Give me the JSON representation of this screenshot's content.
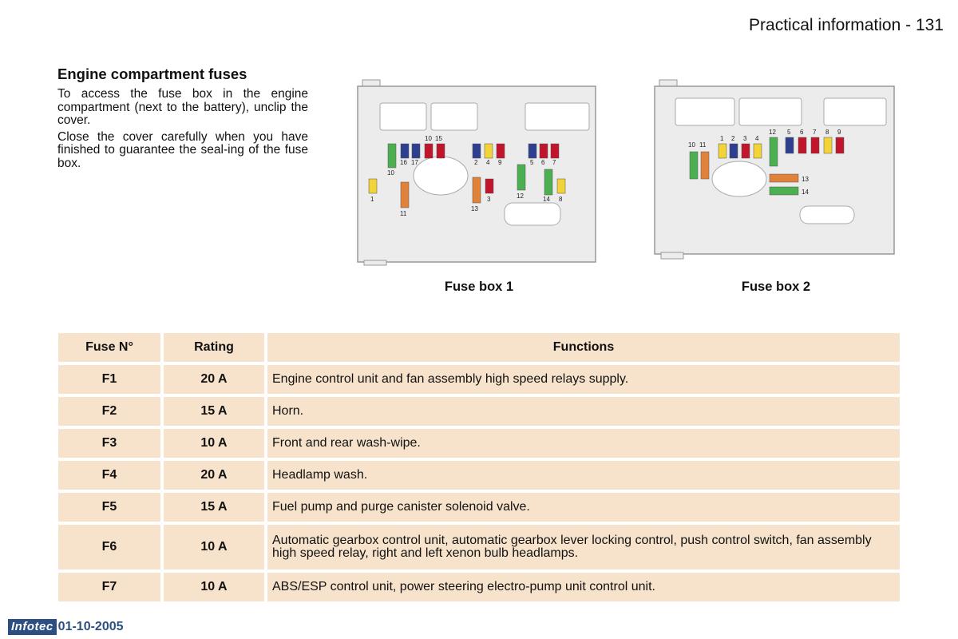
{
  "header": {
    "title": "Practical information - 131"
  },
  "intro": {
    "heading": "Engine compartment fuses",
    "para1": "To access the fuse box in the engine compartment (next to the battery), unclip the cover.",
    "para2": "Close the cover carefully when you have finished to guarantee the seal-ing of the fuse box."
  },
  "figures": {
    "box1_caption": "Fuse box 1",
    "box2_caption": "Fuse box 2",
    "box1_labels": {
      "f1": "1",
      "f3": "3",
      "f11": "11",
      "f13": "13",
      "f12": "12",
      "f10": "10",
      "f16": "16",
      "f17": "17",
      "f15": "15",
      "f2": "2",
      "f4": "4",
      "f9": "9",
      "f5": "5",
      "f6": "6",
      "f7": "7",
      "f14": "14",
      "f8": "8"
    },
    "box2_labels": {
      "f10": "10",
      "f11": "11",
      "f1": "1",
      "f2": "2",
      "f3": "3",
      "f4": "4",
      "f12": "12",
      "f5": "5",
      "f6": "6",
      "f7": "7",
      "f8": "8",
      "f9": "9",
      "f13": "13",
      "f14": "14"
    },
    "colors": {
      "green": "#4caf50",
      "blue": "#2e3f8f",
      "red": "#c0152b",
      "yellow": "#f2d43a",
      "orange": "#e0823a",
      "panel": "#ececec"
    }
  },
  "table": {
    "headers": [
      "Fuse N°",
      "Rating",
      "Functions"
    ],
    "rows": [
      {
        "fuse": "F1",
        "rating": "20 A",
        "function": "Engine control unit and fan assembly high speed relays supply."
      },
      {
        "fuse": "F2",
        "rating": "15 A",
        "function": "Horn."
      },
      {
        "fuse": "F3",
        "rating": "10 A",
        "function": "Front and rear wash-wipe."
      },
      {
        "fuse": "F4",
        "rating": "20 A",
        "function": "Headlamp wash."
      },
      {
        "fuse": "F5",
        "rating": "15 A",
        "function": "Fuel pump and purge canister solenoid valve."
      },
      {
        "fuse": "F6",
        "rating": "10 A",
        "function": "Automatic gearbox control unit, automatic gearbox lever locking control, push control switch, fan assembly high speed relay, right and left xenon bulb headlamps."
      },
      {
        "fuse": "F7",
        "rating": "10 A",
        "function": "ABS/ESP control unit, power steering electro-pump unit control unit."
      }
    ]
  },
  "footer": {
    "brand": "Infotec",
    "date": "01-10-2005"
  }
}
